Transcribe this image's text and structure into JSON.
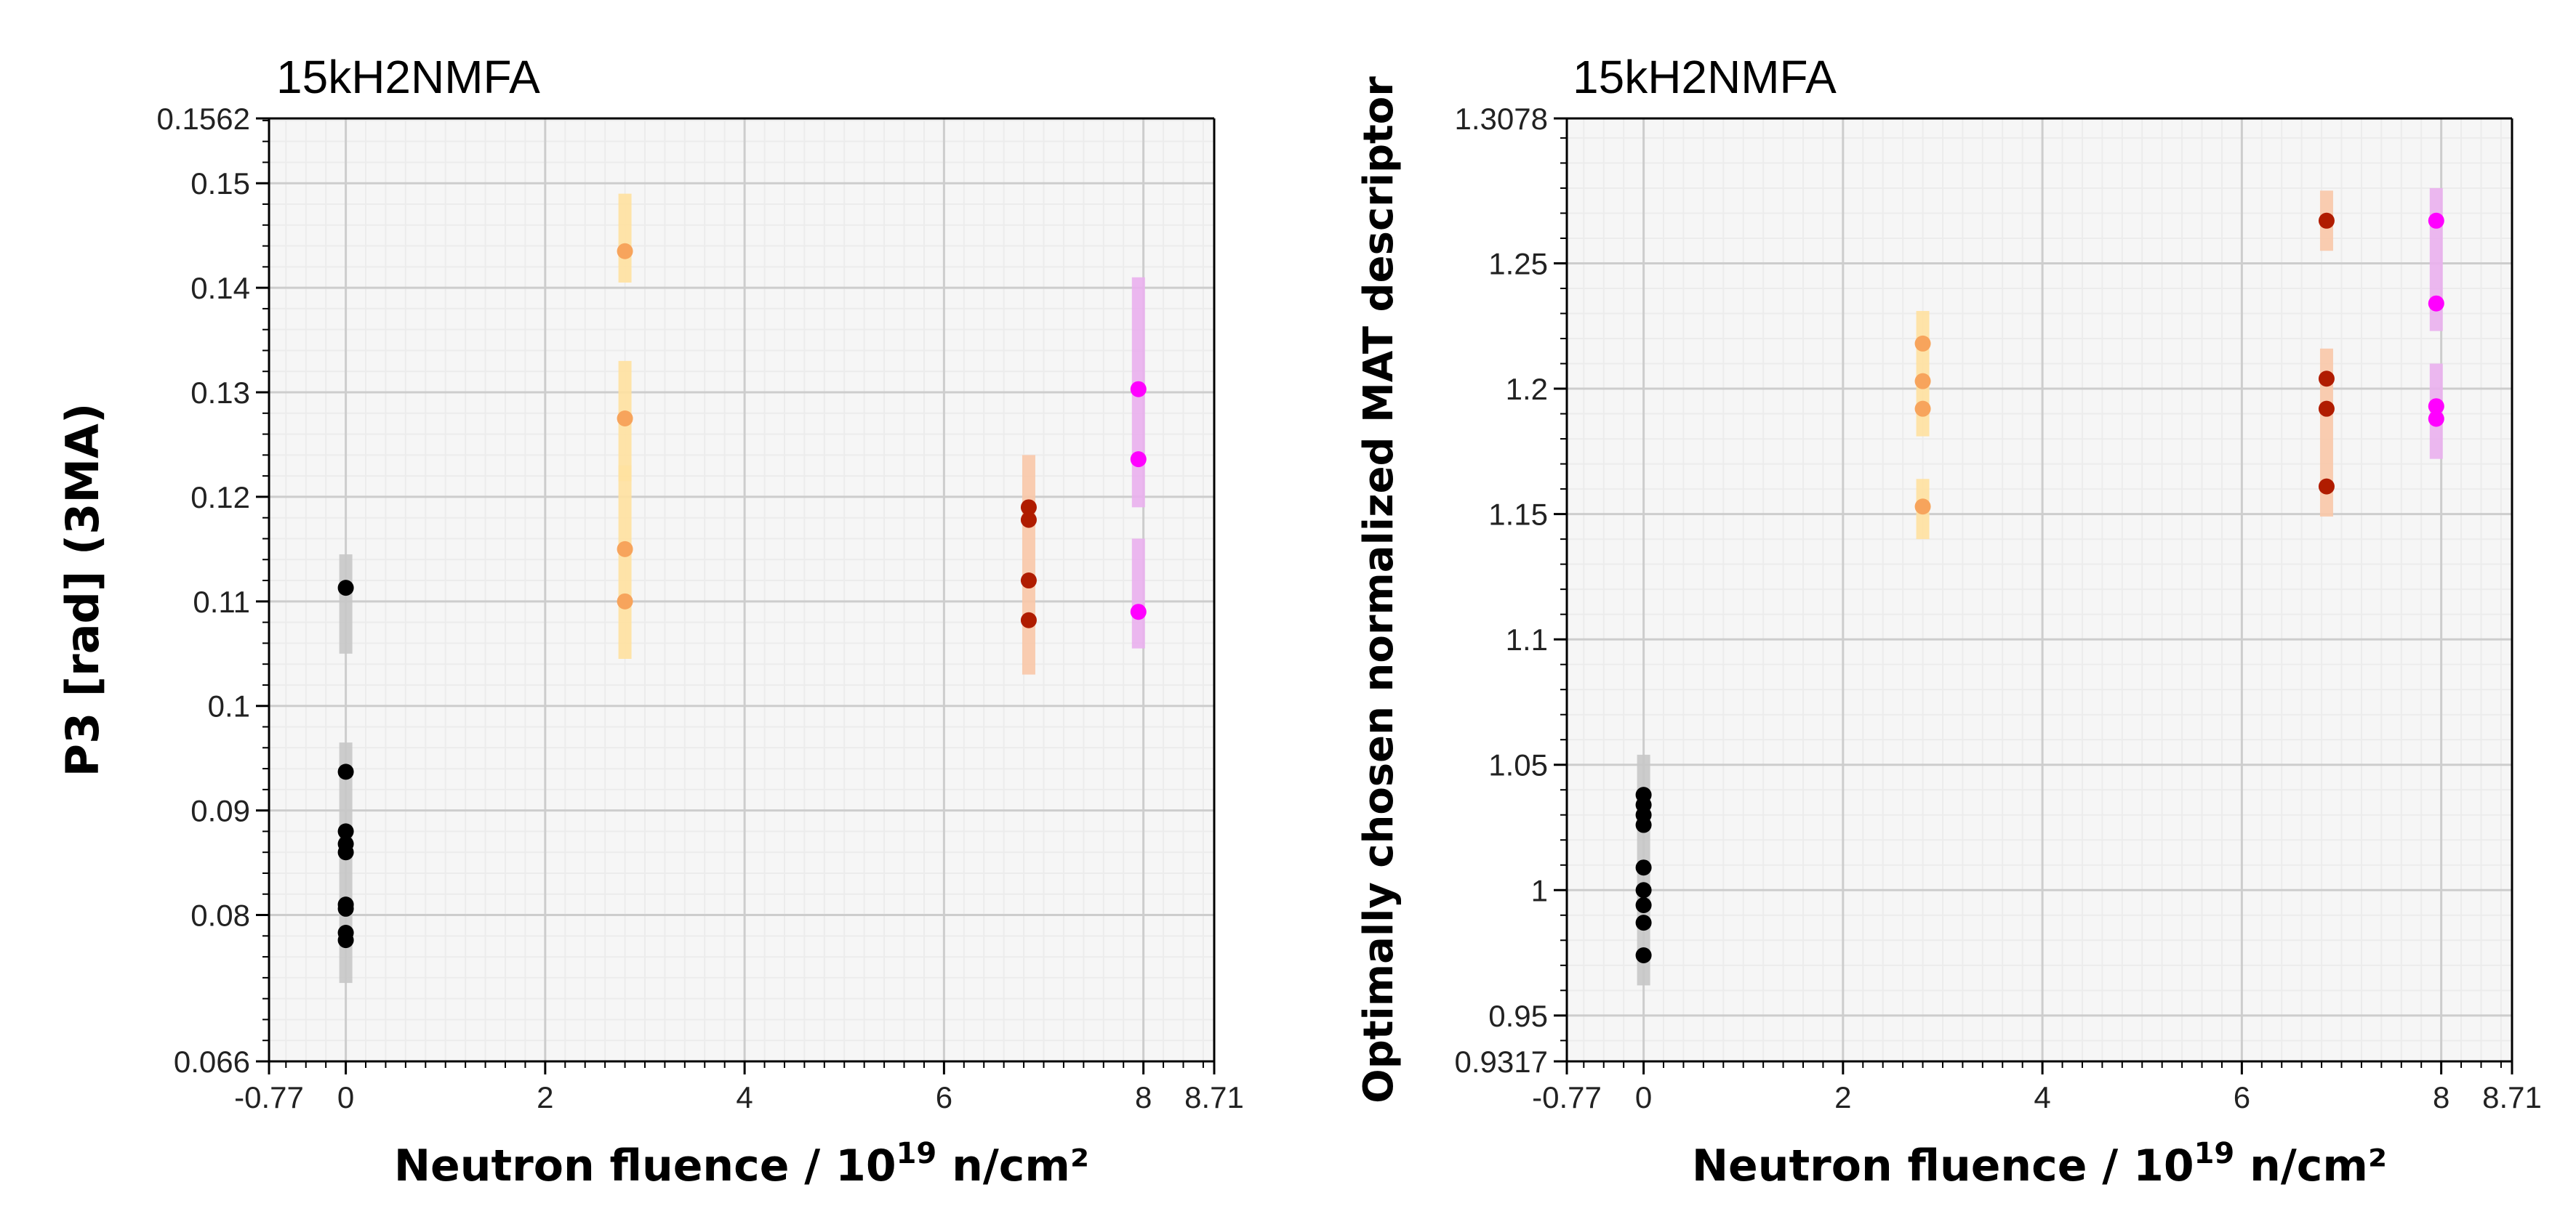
{
  "chart_data": [
    {
      "type": "scatter",
      "title": "15kH2NMFA",
      "xlabel": "Neutron fluence / 10",
      "xlabel_sup": "19",
      "xlabel_unit": " n/cm²",
      "ylabel": "P3 [rad] (3MA)",
      "xlim": [
        -0.77,
        8.71
      ],
      "ylim": [
        0.066,
        0.1562
      ],
      "x_ticks": [
        "-0.77",
        "0",
        "2",
        "4",
        "6",
        "8",
        "8.71"
      ],
      "y_ticks": [
        "0.066",
        "0.08",
        "0.09",
        "0.1",
        "0.11",
        "0.12",
        "0.13",
        "0.14",
        "0.15",
        "0.1562"
      ],
      "grid": true,
      "series": [
        {
          "name": "0",
          "color": "#000000",
          "band": "#c8c8c8",
          "x": 0.0,
          "values": [
            0.1113,
            0.0937,
            0.088,
            0.0868,
            0.086,
            0.081,
            0.0806,
            0.0783,
            0.0776
          ],
          "band_ranges": [
            [
              0.105,
              0.1145
            ],
            [
              0.0735,
              0.0965
            ]
          ]
        },
        {
          "name": "2.8",
          "color": "#f7a45c",
          "band": "#ffe1a0",
          "x": 2.8,
          "values": [
            0.1435,
            0.1275,
            0.115,
            0.11
          ],
          "band_ranges": [
            [
              0.1405,
              0.149
            ],
            [
              0.1215,
              0.133
            ],
            [
              0.1045,
              0.123
            ]
          ]
        },
        {
          "name": "6.85",
          "color": "#b01c00",
          "band": "#f9c8a8",
          "x": 6.85,
          "values": [
            0.119,
            0.1178,
            0.112,
            0.1082
          ],
          "band_ranges": [
            [
              0.103,
              0.124
            ]
          ]
        },
        {
          "name": "7.95",
          "color": "#ff00ff",
          "band": "#eab0ee",
          "x": 7.95,
          "values": [
            0.1303,
            0.1236,
            0.109
          ],
          "band_ranges": [
            [
              0.119,
              0.141
            ],
            [
              0.1055,
              0.116
            ]
          ]
        }
      ]
    },
    {
      "type": "scatter",
      "title": "15kH2NMFA",
      "xlabel": "Neutron fluence / 10",
      "xlabel_sup": "19",
      "xlabel_unit": " n/cm²",
      "ylabel": "Optimally chosen normalized MAT descriptor",
      "xlim": [
        -0.77,
        8.71
      ],
      "ylim": [
        0.9317,
        1.3078
      ],
      "x_ticks": [
        "-0.77",
        "0",
        "2",
        "4",
        "6",
        "8",
        "8.71"
      ],
      "y_ticks": [
        "0.9317",
        "0.95",
        "1",
        "1.05",
        "1.1",
        "1.15",
        "1.2",
        "1.25",
        "1.3078"
      ],
      "grid": true,
      "series": [
        {
          "name": "0",
          "color": "#000000",
          "band": "#c8c8c8",
          "x": 0.0,
          "values": [
            1.038,
            1.034,
            1.03,
            1.026,
            1.009,
            1.0,
            0.994,
            0.987,
            0.974
          ],
          "band_ranges": [
            [
              0.962,
              1.054
            ]
          ]
        },
        {
          "name": "2.8",
          "color": "#f7a45c",
          "band": "#ffe1a0",
          "x": 2.8,
          "values": [
            1.218,
            1.203,
            1.192,
            1.153
          ],
          "band_ranges": [
            [
              1.181,
              1.231
            ],
            [
              1.14,
              1.164
            ]
          ]
        },
        {
          "name": "6.85",
          "color": "#b01c00",
          "band": "#f9c8a8",
          "x": 6.85,
          "values": [
            1.267,
            1.204,
            1.192,
            1.161
          ],
          "band_ranges": [
            [
              1.255,
              1.279
            ],
            [
              1.149,
              1.216
            ]
          ]
        },
        {
          "name": "7.95",
          "color": "#ff00ff",
          "band": "#eab0ee",
          "x": 7.95,
          "values": [
            1.267,
            1.234,
            1.193,
            1.188
          ],
          "band_ranges": [
            [
              1.223,
              1.28
            ],
            [
              1.172,
              1.21
            ]
          ]
        }
      ]
    }
  ]
}
